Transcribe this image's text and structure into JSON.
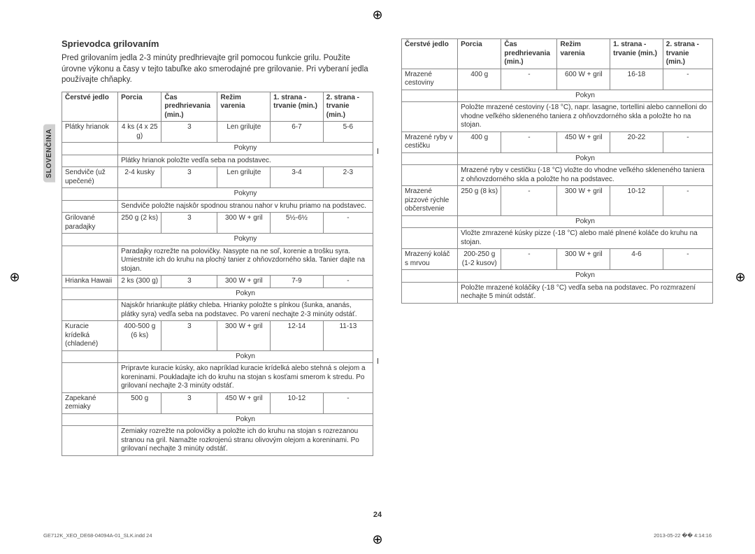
{
  "sideTab": "SLOVENČINA",
  "title": "Sprievodca grilovaním",
  "intro": "Pred grilovaním jedla 2-3 minúty predhrievajte gril pomocou funkcie grilu. Použite úrovne výkonu a časy v tejto tabuľke ako smerodajné pre grilovanie. Pri vyberaní jedla používajte chňapky.",
  "headers": {
    "food": "Čerstvé jedlo",
    "portion": "Porcia",
    "preheat": "Čas predhrievania (min.)",
    "mode": "Režim varenia",
    "side1": "1. strana - trvanie (min.)",
    "side2": "2. strana - trvanie (min.)"
  },
  "instrLabelPlural": "Pokyny",
  "instrLabelSingular": "Pokyn",
  "leftRows": [
    {
      "food": "Plátky hrianok",
      "portion": "4 ks (4 x 25 g)",
      "preheat": "3",
      "mode": "Len grilujte",
      "d1": "6-7",
      "d2": "5-6",
      "ilabel": "Pokyny",
      "instr": "Plátky hrianok položte vedľa seba na podstavec."
    },
    {
      "food": "Sendviče (už upečené)",
      "portion": "2-4 kusky",
      "preheat": "3",
      "mode": "Len grilujte",
      "d1": "3-4",
      "d2": "2-3",
      "ilabel": "Pokyny",
      "instr": "Sendviče položte najskôr spodnou stranou nahor v kruhu priamo na podstavec."
    },
    {
      "food": "Grilované paradajky",
      "portion": "250 g (2 ks)",
      "preheat": "3",
      "mode": "300 W + gril",
      "d1": "5½-6½",
      "d2": "-",
      "ilabel": "Pokyny",
      "instr": "Paradajky rozrežte na polovičky. Nasypte na ne soľ, korenie a trošku syra. Umiestnite ich do kruhu na plochý tanier z ohňovzdorného skla. Tanier dajte na stojan."
    },
    {
      "food": "Hrianka Hawaii",
      "portion": "2 ks (300 g)",
      "preheat": "3",
      "mode": "300 W + gril",
      "d1": "7-9",
      "d2": "-",
      "ilabel": "Pokyn",
      "instr": "Najskôr hriankujte plátky chleba. Hrianky položte s plnkou (šunka, ananás, plátky syra) vedľa seba na podstavec. Po varení nechajte 2-3 minúty odstáť."
    },
    {
      "food": "Kuracie krídelká (chladené)",
      "portion": "400-500 g (6 ks)",
      "preheat": "3",
      "mode": "300 W + gril",
      "d1": "12-14",
      "d2": "11-13",
      "ilabel": "Pokyn",
      "instr": "Pripravte kuracie kúsky, ako napríklad kuracie krídelká alebo stehná s olejom a koreninami. Poukladajte ich do kruhu na stojan s kosťami smerom k stredu. Po grilovaní nechajte 2-3 minúty odstáť."
    },
    {
      "food": "Zapekané zemiaky",
      "portion": "500 g",
      "preheat": "3",
      "mode": "450 W + gril",
      "d1": "10-12",
      "d2": "-",
      "ilabel": "Pokyn",
      "instr": "Zemiaky rozrežte na polovičky a položte ich do kruhu na stojan s rozrezanou stranou na gril. Namažte rozkrojenú stranu olivovým olejom a koreninami. Po grilovaní nechajte 3 minúty odstáť."
    }
  ],
  "rightRows": [
    {
      "food": "Mrazené cestoviny",
      "portion": "400 g",
      "preheat": "-",
      "mode": "600 W + gril",
      "d1": "16-18",
      "d2": "-",
      "ilabel": "Pokyn",
      "instr": "Položte mrazené cestoviny (-18 °C), napr. lasagne, tortellini alebo cannelloni do vhodne veľkého skleneného taniera z ohňovzdorného skla a položte ho na stojan."
    },
    {
      "food": "Mrazené ryby v cestičku",
      "portion": "400 g",
      "preheat": "-",
      "mode": "450 W + gril",
      "d1": "20-22",
      "d2": "-",
      "ilabel": "Pokyn",
      "instr": "Mrazené ryby v cestičku (-18 °C) vložte do vhodne veľkého skleneného taniera z ohňovzdorného skla a položte ho na podstavec."
    },
    {
      "food": "Mrazené pizzové rýchle občerstvenie",
      "portion": "250 g (8 ks)",
      "preheat": "-",
      "mode": "300 W + gril",
      "d1": "10-12",
      "d2": "-",
      "ilabel": "Pokyn",
      "instr": "Vložte zmrazené kúsky pizze (-18 °C) alebo malé plnené koláče do kruhu na stojan."
    },
    {
      "food": "Mrazený koláč s mrvou",
      "portion": "200-250 g (1-2 kusov)",
      "preheat": "-",
      "mode": "300 W + gril",
      "d1": "4-6",
      "d2": "-",
      "ilabel": "Pokyn",
      "instr": "Položte mrazené koláčiky (-18 °C) vedľa seba na podstavec. Po rozmrazení nechajte 5 minút odstáť."
    }
  ],
  "pageNumber": "24",
  "footerLeft": "GE712K_XEO_DE68-04094A-01_SLK.indd   24",
  "footerRight": "2013-05-22   �� 4:14:16"
}
